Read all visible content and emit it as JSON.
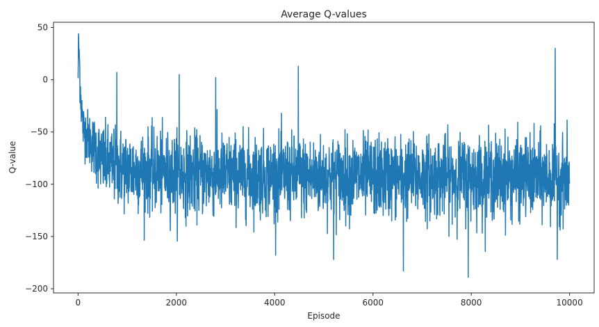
{
  "chart_data": {
    "type": "line",
    "title": "Average Q-values",
    "xlabel": "Episode",
    "ylabel": "Q-value",
    "xlim": [
      -500,
      10500
    ],
    "ylim": [
      -204,
      55
    ],
    "grid": false,
    "line_color": "#1f77b4",
    "x_ticks": [
      {
        "value": 0,
        "label": "0"
      },
      {
        "value": 2000,
        "label": "2000"
      },
      {
        "value": 4000,
        "label": "4000"
      },
      {
        "value": 6000,
        "label": "6000"
      },
      {
        "value": 8000,
        "label": "8000"
      },
      {
        "value": 10000,
        "label": "10000"
      }
    ],
    "y_ticks": [
      {
        "value": 50,
        "label": "50"
      },
      {
        "value": 0,
        "label": "0"
      },
      {
        "value": -50,
        "label": "−50"
      },
      {
        "value": -100,
        "label": "−100"
      },
      {
        "value": -150,
        "label": "−150"
      },
      {
        "value": -200,
        "label": "−200"
      }
    ],
    "series": [
      {
        "x": [
          0,
          10,
          20,
          40,
          60,
          100,
          150,
          200,
          300,
          400,
          500,
          700,
          1000,
          1500,
          2000,
          3000,
          4000,
          5000,
          6000,
          7000,
          8000,
          9000,
          10000
        ],
        "mean": [
          2,
          25,
          30,
          0,
          -20,
          -45,
          -50,
          -55,
          -62,
          -70,
          -78,
          -82,
          -86,
          -88,
          -90,
          -91,
          -92,
          -93,
          -93,
          -93,
          -93,
          -93,
          -94
        ],
        "spread": [
          2,
          10,
          14,
          12,
          12,
          12,
          12,
          13,
          14,
          16,
          17,
          18,
          19,
          19,
          19,
          19,
          19,
          19,
          19,
          19,
          19,
          19,
          19
        ],
        "extremes": [
          {
            "x": 10,
            "y": 44
          },
          {
            "x": 790,
            "y": 7
          },
          {
            "x": 2060,
            "y": 5
          },
          {
            "x": 2800,
            "y": 2
          },
          {
            "x": 4480,
            "y": 13
          },
          {
            "x": 9710,
            "y": 30
          },
          {
            "x": 6620,
            "y": -183
          },
          {
            "x": 7940,
            "y": -189
          },
          {
            "x": 5200,
            "y": -172
          },
          {
            "x": 9750,
            "y": -172
          },
          {
            "x": 4020,
            "y": -168
          }
        ]
      }
    ]
  }
}
